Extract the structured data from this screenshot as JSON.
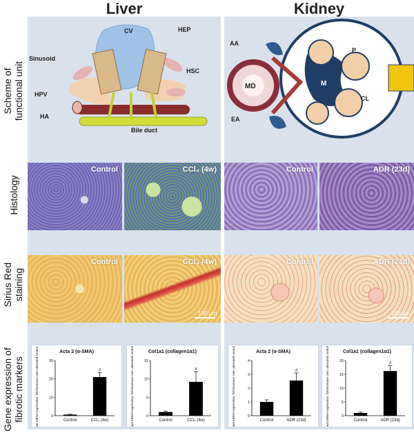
{
  "columns": {
    "liver": "Liver",
    "kidney": "Kidney"
  },
  "rows": {
    "scheme": [
      "Scheme of",
      "functional unit"
    ],
    "histology": "Histology",
    "sirius": [
      "Sirius Red",
      "staining"
    ],
    "gene": [
      "Gene expression of",
      "fibrotic markers"
    ]
  },
  "liver_scheme": {
    "cv": "CV",
    "hep": "HEP",
    "sinusoid": "Sinusoid",
    "hsc": "HSC",
    "hpv": "HPV",
    "ha": "HA",
    "bile_duct": "Bile duct"
  },
  "kidney_scheme": {
    "aa": "AA",
    "md": "MD",
    "ea": "EA",
    "m": "M",
    "p": "P",
    "cl": "CL"
  },
  "tiles": {
    "liver_hist_control": "Control",
    "liver_hist_ccl4": "CCl₄ (4w)",
    "kidney_hist_control": "Control",
    "kidney_hist_adr": "ADR (23d)",
    "liver_sirius_control": "Control",
    "liver_sirius_ccl4": "CCl₄ (4w)",
    "kidney_sirius_control": "Control",
    "kidney_sirius_adr": "ADR (23d)",
    "scale": "100 µm"
  },
  "colors": {
    "panel": "#d9e2ec",
    "liver_hist": "#7f78bf",
    "kidney_hist": "#9c86c4",
    "sirius_liver": "#f1c971",
    "sirius_kidney": "#f3d9b0",
    "bar": "#000000"
  },
  "chart_data": [
    {
      "type": "bar",
      "title": "Acta 2 (α-SMA)",
      "ylabel": "Liver mRNA expression, fold increase over untreated control",
      "categories": [
        "Control",
        "CCl₄ (4w)"
      ],
      "values": [
        0.6,
        21
      ],
      "errors": [
        0.2,
        2.5
      ],
      "ylim": [
        0,
        30
      ],
      "yticks": [
        0,
        10,
        20,
        30
      ],
      "significance": "#"
    },
    {
      "type": "bar",
      "title": "Col1a1 (collagen1α1)",
      "ylabel": "Renal mRNA expression, fold increase over untreated control",
      "categories": [
        "Control",
        "CCl₄ (4w)"
      ],
      "values": [
        1,
        9.2
      ],
      "errors": [
        0.2,
        2.8
      ],
      "ylim": [
        0,
        15
      ],
      "yticks": [
        0,
        5,
        10,
        15
      ],
      "significance": "#"
    },
    {
      "type": "bar",
      "title": "Acta 2 (α-SMA)",
      "ylabel": "Renal mRNA expression, fold increase over untreated control",
      "categories": [
        "Control",
        "ADR (23d)"
      ],
      "values": [
        1,
        2.55
      ],
      "errors": [
        0.15,
        0.55
      ],
      "ylim": [
        0,
        4
      ],
      "yticks": [
        0,
        1,
        2,
        3,
        4
      ],
      "significance": "#"
    },
    {
      "type": "bar",
      "title": "Col1a1 (collagen1α1)",
      "ylabel": "Renal mRNA expression, fold increase over untreated control",
      "categories": [
        "Control",
        "ADR (23d)"
      ],
      "values": [
        1,
        16.2
      ],
      "errors": [
        0.3,
        2
      ],
      "ylim": [
        0,
        20
      ],
      "yticks": [
        0,
        5,
        10,
        15,
        20
      ],
      "significance": "#"
    }
  ]
}
